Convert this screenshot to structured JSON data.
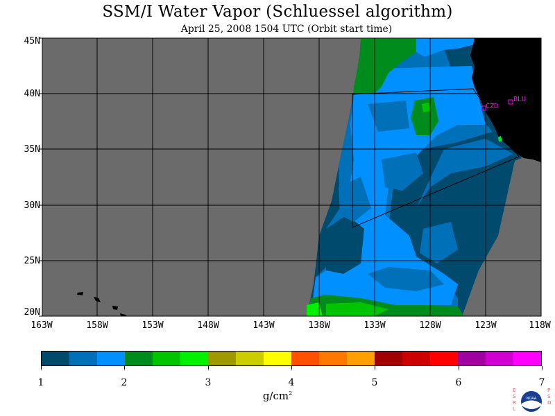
{
  "header": {
    "title": "SSM/I Water Vapor (Schluessel algorithm)",
    "subtitle": "April 25, 2008  1504 UTC  (Orbit start time)"
  },
  "map": {
    "lat_labels": [
      "45N",
      "40N",
      "35N",
      "30N",
      "25N",
      "20N"
    ],
    "lon_labels": [
      "163W",
      "158W",
      "153W",
      "148W",
      "143W",
      "138W",
      "133W",
      "128W",
      "123W",
      "118W"
    ],
    "stations": [
      {
        "code": "CZD"
      },
      {
        "code": "BLU"
      }
    ],
    "colors": {
      "no_data": "#6b6b6b",
      "land": "#000000",
      "grid": "#000000",
      "station": "#ff00ff"
    }
  },
  "colorbar": {
    "colors": [
      "#004a6e",
      "#0070b8",
      "#0090ff",
      "#008c1c",
      "#00c400",
      "#00f000",
      "#a09800",
      "#cccc00",
      "#ffff00",
      "#ff5000",
      "#ff7800",
      "#ffa000",
      "#a00000",
      "#cc0000",
      "#ff0000",
      "#a000a0",
      "#d000d0",
      "#ff00ff"
    ],
    "tick_labels": [
      "1",
      "2",
      "3",
      "4",
      "5",
      "6",
      "7"
    ],
    "units": "g/cm",
    "units_exp": "2"
  },
  "logo": {
    "left_text": "ESRL",
    "right_text": "PSD",
    "center_text": "NOAA"
  }
}
